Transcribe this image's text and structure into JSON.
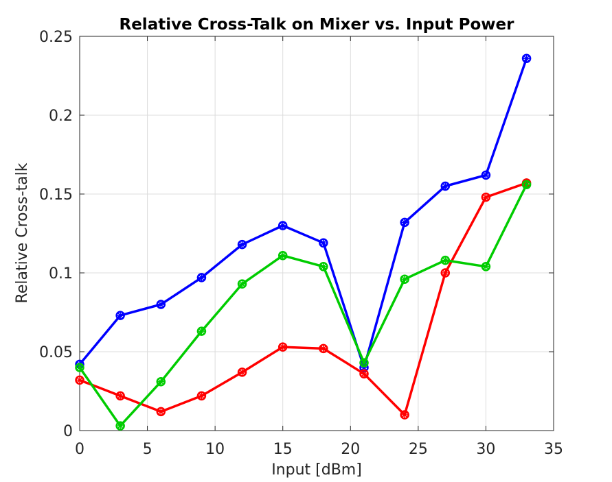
{
  "chart_data": {
    "type": "line",
    "title": "Relative Cross-Talk on Mixer vs. Input Power",
    "xlabel": "Input [dBm]",
    "ylabel": "Relative Cross-talk",
    "xlim": [
      0,
      35
    ],
    "ylim": [
      0,
      0.25
    ],
    "xticks": [
      "0",
      "5",
      "10",
      "15",
      "20",
      "25",
      "30",
      "35"
    ],
    "yticks": [
      "0",
      "0.05",
      "0.1",
      "0.15",
      "0.2",
      "0.25"
    ],
    "grid": true,
    "x": [
      0,
      3,
      6,
      9,
      12,
      15,
      18,
      21,
      24,
      27,
      30,
      33
    ],
    "series": [
      {
        "color": "#0000ff",
        "values": [
          0.042,
          0.073,
          0.08,
          0.097,
          0.118,
          0.13,
          0.119,
          0.04,
          0.132,
          0.155,
          0.162,
          0.236
        ]
      },
      {
        "color": "#ff0000",
        "values": [
          0.032,
          0.022,
          0.012,
          0.022,
          0.037,
          0.053,
          0.052,
          0.036,
          0.01,
          0.1,
          0.148,
          0.157
        ]
      },
      {
        "color": "#00cc00",
        "values": [
          0.04,
          0.003,
          0.031,
          0.063,
          0.093,
          0.111,
          0.104,
          0.043,
          0.096,
          0.108,
          0.104,
          0.156
        ]
      }
    ]
  }
}
